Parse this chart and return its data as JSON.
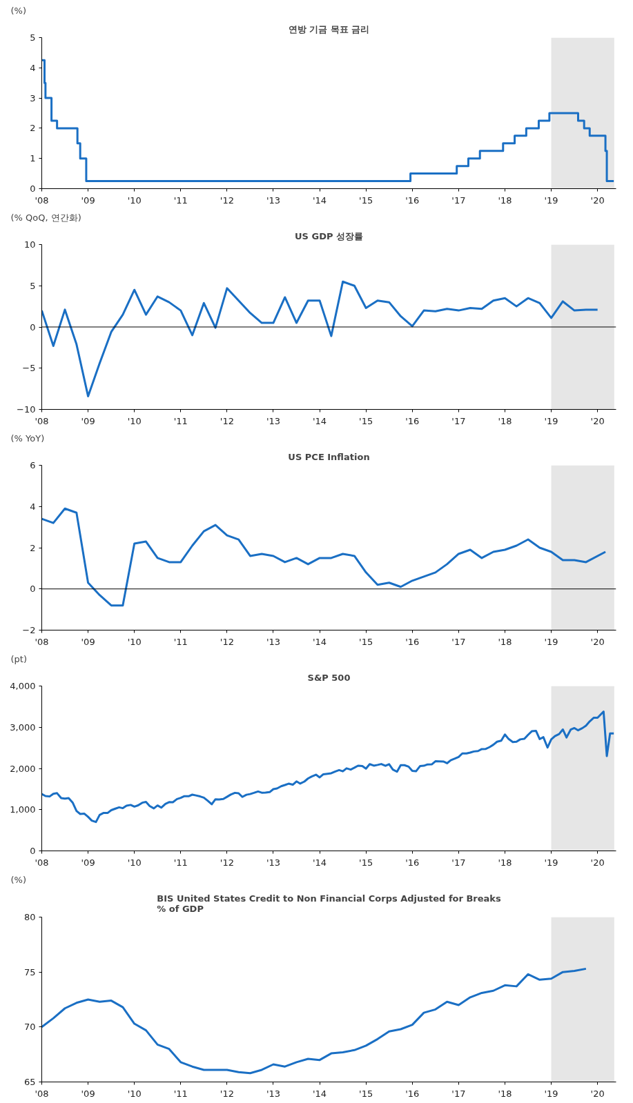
{
  "chart_data": [
    {
      "type": "step",
      "title": "연방 기금 목표 금리",
      "ylabel": "(%)",
      "x": [
        2008.0,
        2008.06,
        2008.08,
        2008.21,
        2008.33,
        2008.77,
        2008.83,
        2008.96,
        2015.96,
        2016.96,
        2017.21,
        2017.46,
        2017.96,
        2018.21,
        2018.46,
        2018.73,
        2018.96,
        2019.58,
        2019.71,
        2019.83,
        2020.17,
        2020.2,
        2020.35
      ],
      "series": [
        {
          "color": "#1a6fc4",
          "values": [
            4.25,
            3.5,
            3.0,
            2.25,
            2.0,
            1.5,
            1.0,
            0.25,
            0.5,
            0.75,
            1.0,
            1.25,
            1.5,
            1.75,
            2.0,
            2.25,
            2.5,
            2.25,
            2.0,
            1.75,
            1.25,
            0.25,
            0.25
          ]
        }
      ],
      "xlim": [
        2008,
        2020.4
      ],
      "ylim": [
        0,
        5
      ],
      "yticks": [
        0,
        1,
        2,
        3,
        4,
        5
      ],
      "xticks": [
        {
          "value": 2008,
          "label": "'08"
        },
        {
          "value": 2009,
          "label": "'09"
        },
        {
          "value": 2010,
          "label": "'10"
        },
        {
          "value": 2011,
          "label": "'11"
        },
        {
          "value": 2012,
          "label": "'12"
        },
        {
          "value": 2013,
          "label": "'13"
        },
        {
          "value": 2014,
          "label": "'14"
        },
        {
          "value": 2015,
          "label": "'15"
        },
        {
          "value": 2016,
          "label": "'16"
        },
        {
          "value": 2017,
          "label": "'17"
        },
        {
          "value": 2018,
          "label": "'18"
        },
        {
          "value": 2019,
          "label": "'19"
        },
        {
          "value": 2020,
          "label": "'20"
        }
      ],
      "bands": [
        {
          "axis": "x",
          "from": 2019,
          "to": 2020.36,
          "color": "#e6e6e6"
        }
      ],
      "grid": false
    },
    {
      "type": "line",
      "title": "US GDP 성장률",
      "ylabel": "(% QoQ, 연간화)",
      "x": [
        2008.0,
        2008.25,
        2008.5,
        2008.75,
        2009.0,
        2009.25,
        2009.5,
        2009.75,
        2010.0,
        2010.25,
        2010.5,
        2010.75,
        2011.0,
        2011.25,
        2011.5,
        2011.75,
        2012.0,
        2012.25,
        2012.5,
        2012.75,
        2013.0,
        2013.25,
        2013.5,
        2013.75,
        2014.0,
        2014.25,
        2014.5,
        2014.75,
        2015.0,
        2015.25,
        2015.5,
        2015.75,
        2016.0,
        2016.25,
        2016.5,
        2016.75,
        2017.0,
        2017.25,
        2017.5,
        2017.75,
        2018.0,
        2018.25,
        2018.5,
        2018.75,
        2019.0,
        2019.25,
        2019.5,
        2019.75,
        2020.0
      ],
      "series": [
        {
          "color": "#1a6fc4",
          "values": [
            2.0,
            -2.3,
            2.1,
            -2.1,
            -8.4,
            -4.4,
            -0.6,
            1.5,
            4.5,
            1.5,
            3.7,
            3.0,
            2.0,
            -1.0,
            2.9,
            -0.1,
            4.7,
            3.2,
            1.7,
            0.5,
            0.5,
            3.6,
            0.5,
            3.2,
            3.2,
            -1.1,
            5.5,
            5.0,
            2.3,
            3.2,
            3.0,
            1.3,
            0.1,
            2.0,
            1.9,
            2.2,
            2.0,
            2.3,
            2.2,
            3.2,
            3.5,
            2.5,
            3.5,
            2.9,
            1.1,
            3.1,
            2.0,
            2.1,
            2.1
          ]
        }
      ],
      "xlim": [
        2008,
        2020.4
      ],
      "ylim": [
        -10,
        10
      ],
      "yticks": [
        -10,
        -5,
        0,
        5,
        10
      ],
      "xticks": [
        {
          "value": 2008,
          "label": "'08"
        },
        {
          "value": 2009,
          "label": "'09"
        },
        {
          "value": 2010,
          "label": "'10"
        },
        {
          "value": 2011,
          "label": "'11"
        },
        {
          "value": 2012,
          "label": "'12"
        },
        {
          "value": 2013,
          "label": "'13"
        },
        {
          "value": 2014,
          "label": "'14"
        },
        {
          "value": 2015,
          "label": "'15"
        },
        {
          "value": 2016,
          "label": "'16"
        },
        {
          "value": 2017,
          "label": "'17"
        },
        {
          "value": 2018,
          "label": "'18"
        },
        {
          "value": 2019,
          "label": "'19"
        },
        {
          "value": 2020,
          "label": "'20"
        }
      ],
      "bands": [
        {
          "axis": "x",
          "from": 2019,
          "to": 2020.36,
          "color": "#e6e6e6"
        }
      ],
      "ref_lines": [
        {
          "axis": "y",
          "value": 0,
          "color": "#000000"
        }
      ],
      "grid": false
    },
    {
      "type": "line",
      "title": "US PCE Inflation",
      "ylabel": "(% YoY)",
      "x": [
        2008.0,
        2008.25,
        2008.5,
        2008.75,
        2009.0,
        2009.25,
        2009.5,
        2009.75,
        2010.0,
        2010.25,
        2010.5,
        2010.75,
        2011.0,
        2011.25,
        2011.5,
        2011.75,
        2012.0,
        2012.25,
        2012.5,
        2012.75,
        2013.0,
        2013.25,
        2013.5,
        2013.75,
        2014.0,
        2014.25,
        2014.5,
        2014.75,
        2015.0,
        2015.25,
        2015.5,
        2015.75,
        2016.0,
        2016.25,
        2016.5,
        2016.75,
        2017.0,
        2017.25,
        2017.5,
        2017.75,
        2018.0,
        2018.25,
        2018.5,
        2018.75,
        2019.0,
        2019.25,
        2019.5,
        2019.75,
        2020.17
      ],
      "series": [
        {
          "color": "#1a6fc4",
          "values": [
            3.4,
            3.2,
            3.9,
            3.7,
            0.3,
            -0.3,
            -0.8,
            -0.8,
            2.2,
            2.3,
            1.5,
            1.3,
            1.3,
            2.1,
            2.8,
            3.1,
            2.6,
            2.4,
            1.6,
            1.7,
            1.6,
            1.3,
            1.5,
            1.2,
            1.5,
            1.5,
            1.7,
            1.6,
            0.8,
            0.2,
            0.3,
            0.1,
            0.4,
            0.6,
            0.8,
            1.2,
            1.7,
            1.9,
            1.5,
            1.8,
            1.9,
            2.1,
            2.4,
            2.0,
            1.8,
            1.4,
            1.4,
            1.3,
            1.8
          ]
        }
      ],
      "xlim": [
        2008,
        2020.4
      ],
      "ylim": [
        -2,
        6
      ],
      "yticks": [
        -2,
        0,
        2,
        4,
        6
      ],
      "xticks": [
        {
          "value": 2008,
          "label": "'08"
        },
        {
          "value": 2009,
          "label": "'09"
        },
        {
          "value": 2010,
          "label": "'10"
        },
        {
          "value": 2011,
          "label": "'11"
        },
        {
          "value": 2012,
          "label": "'12"
        },
        {
          "value": 2013,
          "label": "'13"
        },
        {
          "value": 2014,
          "label": "'14"
        },
        {
          "value": 2015,
          "label": "'15"
        },
        {
          "value": 2016,
          "label": "'16"
        },
        {
          "value": 2017,
          "label": "'17"
        },
        {
          "value": 2018,
          "label": "'18"
        },
        {
          "value": 2019,
          "label": "'19"
        },
        {
          "value": 2020,
          "label": "'20"
        }
      ],
      "bands": [
        {
          "axis": "x",
          "from": 2019,
          "to": 2020.36,
          "color": "#e6e6e6"
        }
      ],
      "ref_lines": [
        {
          "axis": "y",
          "value": 0,
          "color": "#000000"
        }
      ],
      "grid": false
    },
    {
      "type": "line",
      "title": "S&P 500",
      "ylabel": "(pt)",
      "x": [
        2008.0,
        2008.08,
        2008.17,
        2008.25,
        2008.33,
        2008.42,
        2008.5,
        2008.58,
        2008.67,
        2008.75,
        2008.83,
        2008.92,
        2009.0,
        2009.08,
        2009.17,
        2009.25,
        2009.33,
        2009.42,
        2009.5,
        2009.58,
        2009.67,
        2009.75,
        2009.83,
        2009.92,
        2010.0,
        2010.08,
        2010.17,
        2010.25,
        2010.33,
        2010.42,
        2010.5,
        2010.58,
        2010.67,
        2010.75,
        2010.83,
        2010.92,
        2011.0,
        2011.08,
        2011.17,
        2011.25,
        2011.33,
        2011.42,
        2011.5,
        2011.58,
        2011.67,
        2011.75,
        2011.83,
        2011.92,
        2012.0,
        2012.08,
        2012.17,
        2012.25,
        2012.33,
        2012.42,
        2012.5,
        2012.58,
        2012.67,
        2012.75,
        2012.83,
        2012.92,
        2013.0,
        2013.08,
        2013.17,
        2013.25,
        2013.33,
        2013.42,
        2013.5,
        2013.58,
        2013.67,
        2013.75,
        2013.83,
        2013.92,
        2014.0,
        2014.08,
        2014.17,
        2014.25,
        2014.33,
        2014.42,
        2014.5,
        2014.58,
        2014.67,
        2014.75,
        2014.83,
        2014.92,
        2015.0,
        2015.08,
        2015.17,
        2015.25,
        2015.33,
        2015.42,
        2015.5,
        2015.58,
        2015.67,
        2015.75,
        2015.83,
        2015.92,
        2016.0,
        2016.08,
        2016.17,
        2016.25,
        2016.33,
        2016.42,
        2016.5,
        2016.58,
        2016.67,
        2016.75,
        2016.83,
        2016.92,
        2017.0,
        2017.08,
        2017.17,
        2017.25,
        2017.33,
        2017.42,
        2017.5,
        2017.58,
        2017.67,
        2017.75,
        2017.83,
        2017.92,
        2018.0,
        2018.08,
        2018.17,
        2018.25,
        2018.33,
        2018.42,
        2018.5,
        2018.58,
        2018.67,
        2018.75,
        2018.83,
        2018.92,
        2019.0,
        2019.08,
        2019.17,
        2019.25,
        2019.33,
        2019.42,
        2019.5,
        2019.58,
        2019.67,
        2019.75,
        2019.83,
        2019.92,
        2020.0,
        2020.13,
        2020.2,
        2020.27,
        2020.35
      ],
      "series": [
        {
          "color": "#1a6fc4",
          "values": [
            1380,
            1330,
            1320,
            1385,
            1400,
            1280,
            1267,
            1282,
            1166,
            969,
            896,
            903,
            826,
            735,
            700,
            873,
            919,
            919,
            987,
            1021,
            1057,
            1036,
            1096,
            1115,
            1074,
            1104,
            1169,
            1187,
            1089,
            1031,
            1102,
            1049,
            1141,
            1183,
            1181,
            1258,
            1286,
            1327,
            1326,
            1364,
            1345,
            1321,
            1292,
            1219,
            1131,
            1253,
            1247,
            1258,
            1312,
            1366,
            1408,
            1398,
            1310,
            1362,
            1379,
            1407,
            1441,
            1412,
            1416,
            1426,
            1498,
            1515,
            1569,
            1598,
            1631,
            1606,
            1686,
            1633,
            1682,
            1757,
            1806,
            1848,
            1783,
            1859,
            1872,
            1884,
            1924,
            1960,
            1931,
            2003,
            1972,
            2018,
            2068,
            2059,
            1995,
            2105,
            2068,
            2086,
            2107,
            2063,
            2104,
            1972,
            1920,
            2079,
            2080,
            2044,
            1940,
            1932,
            2060,
            2065,
            2097,
            2099,
            2174,
            2171,
            2168,
            2126,
            2199,
            2239,
            2279,
            2364,
            2363,
            2384,
            2412,
            2423,
            2470,
            2472,
            2519,
            2575,
            2648,
            2674,
            2824,
            2714,
            2641,
            2648,
            2705,
            2718,
            2816,
            2902,
            2914,
            2712,
            2760,
            2507,
            2704,
            2784,
            2834,
            2946,
            2752,
            2942,
            2980,
            2926,
            2977,
            3038,
            3141,
            3231,
            3230,
            3380,
            2300,
            2850,
            2850
          ]
        }
      ],
      "xlim": [
        2008,
        2020.4
      ],
      "ylim": [
        0,
        4000
      ],
      "yticks": [
        0,
        {
          "value": 1000,
          "label": "1,000"
        },
        {
          "value": 2000,
          "label": "2,000"
        },
        {
          "value": 3000,
          "label": "3,000"
        },
        {
          "value": 4000,
          "label": "4,000"
        }
      ],
      "xticks": [
        {
          "value": 2008,
          "label": "'08"
        },
        {
          "value": 2009,
          "label": "'09"
        },
        {
          "value": 2010,
          "label": "'10"
        },
        {
          "value": 2011,
          "label": "'11"
        },
        {
          "value": 2012,
          "label": "'12"
        },
        {
          "value": 2013,
          "label": "'13"
        },
        {
          "value": 2014,
          "label": "'14"
        },
        {
          "value": 2015,
          "label": "'15"
        },
        {
          "value": 2016,
          "label": "'16"
        },
        {
          "value": 2017,
          "label": "'17"
        },
        {
          "value": 2018,
          "label": "'18"
        },
        {
          "value": 2019,
          "label": "'19"
        },
        {
          "value": 2020,
          "label": "'20"
        }
      ],
      "bands": [
        {
          "axis": "x",
          "from": 2019,
          "to": 2020.36,
          "color": "#e6e6e6"
        }
      ],
      "grid": false
    },
    {
      "type": "line",
      "title": "BIS United States Credit to Non Financial Corps Adjusted for Breaks\n% of GDP",
      "ylabel": "(%)",
      "x": [
        2008.0,
        2008.25,
        2008.5,
        2008.75,
        2009.0,
        2009.25,
        2009.5,
        2009.75,
        2010.0,
        2010.25,
        2010.5,
        2010.75,
        2011.0,
        2011.25,
        2011.5,
        2011.75,
        2012.0,
        2012.25,
        2012.5,
        2012.75,
        2013.0,
        2013.25,
        2013.5,
        2013.75,
        2014.0,
        2014.25,
        2014.5,
        2014.75,
        2015.0,
        2015.25,
        2015.5,
        2015.75,
        2016.0,
        2016.25,
        2016.5,
        2016.75,
        2017.0,
        2017.25,
        2017.5,
        2017.75,
        2018.0,
        2018.25,
        2018.5,
        2018.75,
        2019.0,
        2019.25,
        2019.5,
        2019.75
      ],
      "series": [
        {
          "color": "#1a6fc4",
          "values": [
            70.0,
            70.8,
            71.7,
            72.2,
            72.5,
            72.3,
            72.4,
            71.8,
            70.3,
            69.7,
            68.4,
            68.0,
            66.8,
            66.4,
            66.1,
            66.1,
            66.1,
            65.9,
            65.8,
            66.1,
            66.6,
            66.4,
            66.8,
            67.1,
            67.0,
            67.6,
            67.7,
            67.9,
            68.3,
            68.9,
            69.6,
            69.8,
            70.2,
            71.3,
            71.6,
            72.3,
            72.0,
            72.7,
            73.1,
            73.3,
            73.8,
            73.7,
            74.8,
            74.3,
            74.4,
            75.0,
            75.1,
            75.3
          ]
        }
      ],
      "xlim": [
        2008,
        2020.4
      ],
      "ylim": [
        65,
        80
      ],
      "yticks": [
        65,
        70,
        75,
        80
      ],
      "xticks": [
        {
          "value": 2008,
          "label": "'08"
        },
        {
          "value": 2009,
          "label": "'09"
        },
        {
          "value": 2010,
          "label": "'10"
        },
        {
          "value": 2011,
          "label": "'11"
        },
        {
          "value": 2012,
          "label": "'12"
        },
        {
          "value": 2013,
          "label": "'13"
        },
        {
          "value": 2014,
          "label": "'14"
        },
        {
          "value": 2015,
          "label": "'15"
        },
        {
          "value": 2016,
          "label": "'16"
        },
        {
          "value": 2017,
          "label": "'17"
        },
        {
          "value": 2018,
          "label": "'18"
        },
        {
          "value": 2019,
          "label": "'19"
        },
        {
          "value": 2020,
          "label": "'20"
        }
      ],
      "bands": [
        {
          "axis": "x",
          "from": 2019,
          "to": 2020.36,
          "color": "#e6e6e6"
        }
      ],
      "grid": false
    }
  ]
}
